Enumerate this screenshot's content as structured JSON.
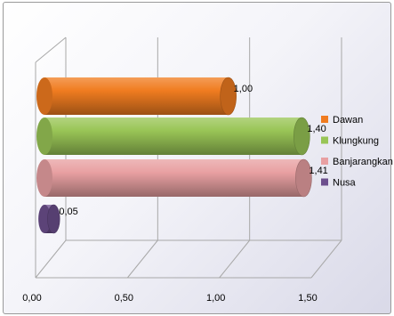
{
  "chart_data": {
    "type": "bar",
    "orientation": "horizontal",
    "style": "3d-cylinder",
    "categories": [
      "Nusa",
      "Banjarangkan",
      "Klungkung",
      "Dawan"
    ],
    "values": [
      0.05,
      1.41,
      1.4,
      1.0
    ],
    "value_labels": [
      "0,05",
      "1,41",
      "1,40",
      "1,00"
    ],
    "colors": [
      "#6c4f8d",
      "#e8a0a2",
      "#99c556",
      "#f07c20"
    ],
    "xlim": [
      0,
      1.5
    ],
    "x_ticks": [
      "0,00",
      "0,50",
      "1,00",
      "1,50"
    ],
    "grid": true,
    "legend_position": "right",
    "legend": [
      {
        "label": "Dawan",
        "color": "#f07c20"
      },
      {
        "label": "Klungkung",
        "color": "#99c556"
      },
      {
        "label": "Banjarangkan",
        "color": "#e8a0a2"
      },
      {
        "label": "Nusa",
        "color": "#6c4f8d"
      }
    ]
  }
}
